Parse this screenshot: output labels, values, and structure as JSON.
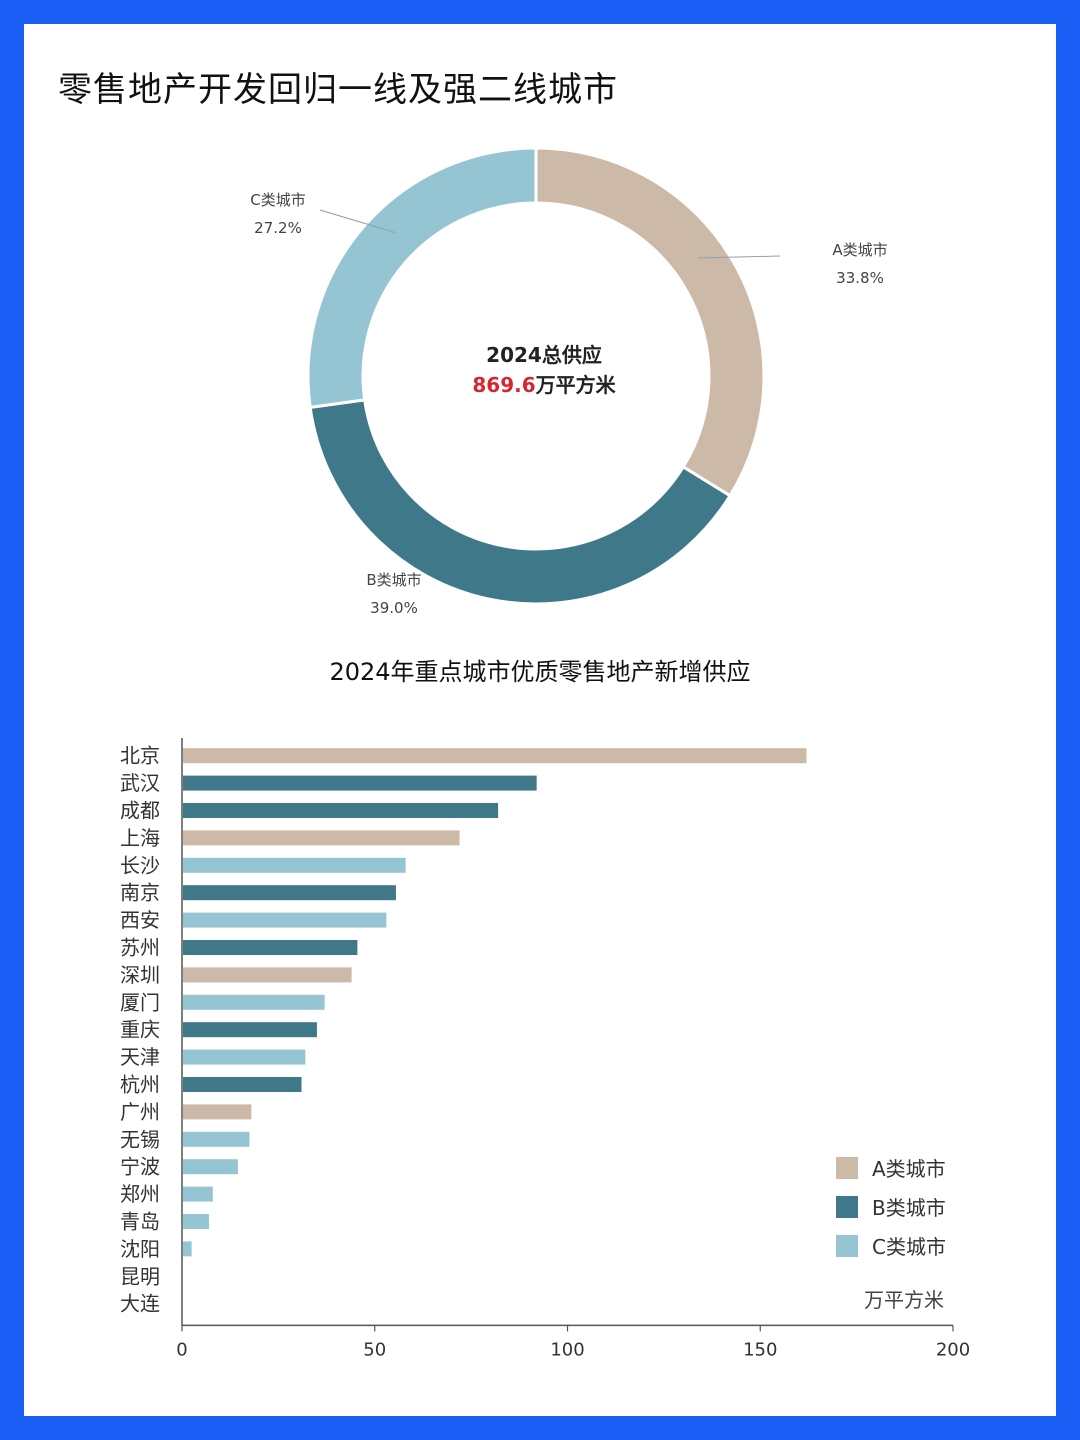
{
  "title": "零售地产开发回归一线及强二线城市",
  "donut": {
    "center_line1": "2024总供应",
    "center_value": "869.6",
    "center_unit": "万平方米",
    "segments": [
      {
        "name": "A类城市",
        "pct_label": "33.8%",
        "value": 33.8,
        "color": "#cdb9a8"
      },
      {
        "name": "B类城市",
        "pct_label": "39.0%",
        "value": 39.0,
        "color": "#3f7889"
      },
      {
        "name": "C类城市",
        "pct_label": "27.2%",
        "value": 27.2,
        "color": "#95c5d3"
      }
    ]
  },
  "bar_title": "2024年重点城市优质零售地产新增供应",
  "unit": "万平方米",
  "legend": [
    {
      "label": "A类城市",
      "color": "#cdb9a8"
    },
    {
      "label": "B类城市",
      "color": "#3f7889"
    },
    {
      "label": "C类城市",
      "color": "#95c5d3"
    }
  ],
  "chart_data": [
    {
      "type": "pie",
      "categories": [
        "A类城市",
        "B类城市",
        "C类城市"
      ],
      "values": [
        33.8,
        39.0,
        27.2
      ]
    },
    {
      "type": "bar",
      "orientation": "horizontal",
      "title": "2024年重点城市优质零售地产新增供应",
      "categories": [
        "北京",
        "武汉",
        "成都",
        "上海",
        "长沙",
        "南京",
        "西安",
        "苏州",
        "深圳",
        "厦门",
        "重庆",
        "天津",
        "杭州",
        "广州",
        "无锡",
        "宁波",
        "郑州",
        "青岛",
        "沈阳",
        "昆明",
        "大连"
      ],
      "values": [
        162,
        92,
        82,
        72,
        58,
        55.5,
        53,
        45.5,
        44,
        37,
        35,
        32,
        31,
        18,
        17.5,
        14.5,
        8,
        7,
        2.5,
        0,
        0
      ],
      "class": [
        "A",
        "B",
        "B",
        "A",
        "C",
        "B",
        "C",
        "B",
        "A",
        "C",
        "B",
        "C",
        "B",
        "A",
        "C",
        "C",
        "C",
        "C",
        "C",
        "C",
        "C"
      ],
      "xlim": [
        0,
        200
      ],
      "xticks": [
        0,
        50,
        100,
        150,
        200
      ],
      "xunit": "万平方米",
      "legend_position": "bottom-right"
    }
  ]
}
